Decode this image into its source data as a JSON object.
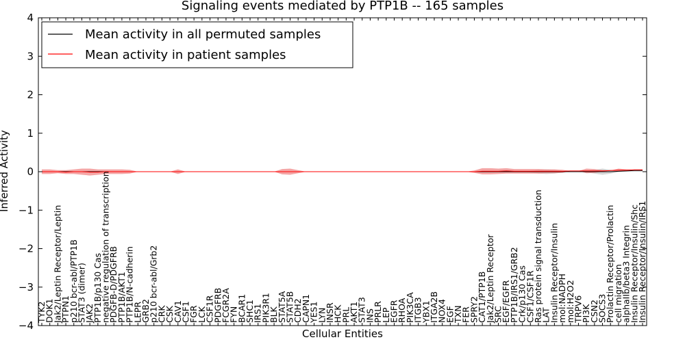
{
  "chart_data": {
    "type": "line",
    "title": "Signaling events mediated by PTP1B -- 165 samples",
    "xlabel": "Cellular Entities",
    "ylabel": "Inferred Activity",
    "ylim": [
      -4,
      4
    ],
    "yticks": [
      -4,
      -3,
      -2,
      -1,
      0,
      1,
      2,
      3,
      4
    ],
    "ytick_labels": [
      "−4",
      "−3",
      "−2",
      "−1",
      "0",
      "1",
      "2",
      "3",
      "4"
    ],
    "grid": false,
    "legend": {
      "position": "top-left",
      "entries": [
        {
          "label": "Mean activity in all permuted samples",
          "color": "#000000"
        },
        {
          "label": "Mean activity in patient samples",
          "color": "#ff0000"
        }
      ]
    },
    "categories": [
      "TYK2",
      "DOK1",
      "Jak2/Leptin Receptor/Leptin",
      "PTPN1",
      "p210 bcr-abl/PTP1B",
      "STAT3 (dimer)",
      "JAK2",
      "PTP1B/p130 Cas",
      "negative regulation of transcription",
      "PDGFB-D/PDGFRB",
      "PTP1B/AKT1",
      "PTP1B/N-cadherin",
      "LEPR",
      "GRB2",
      "p210 bcr-abl/Grb2",
      "CRK",
      "CSK",
      "CAV1",
      "CSF1",
      "FGR",
      "LCK",
      "CSF1R",
      "PDGFRB",
      "FCGR2A",
      "FYN",
      "BCAR1",
      "SHC1",
      "IRS1",
      "PIK3R1",
      "BLK",
      "STAT5A",
      "STAT5B",
      "CDH2",
      "CAPN1",
      "YES1",
      "LYN",
      "INSR",
      "HCK",
      "PRL",
      "AKT1",
      "STAT3",
      "INS",
      "PRLR",
      "LEP",
      "EGFR",
      "RHOA",
      "PIK3CA",
      "ITGB3",
      "YBX1",
      "ITGA2B",
      "NOX4",
      "EGF",
      "TXN",
      "FER",
      "SPRY2",
      "CAT1/PTP1B",
      "Jak2/Leptin Receptor",
      "SRC",
      "EGF/EGFR",
      "PTP1B/IRS1/GRB2",
      "Crk/p130 Cas",
      "CSF1/CSF1R",
      "Ras protein signal transduction",
      "LAT",
      "Insulin Receptor/Insulin",
      "mol:NADPH",
      "mol:H2O2",
      "TRPV6",
      "PI3K",
      "CSN2",
      "SOCS3",
      "Prolactin Receptor/Prolactin",
      "cell migration",
      "alphaIIb/beta3 Integrin",
      "Insulin Receptor/Insulin/Shc",
      "Insulin Receptor/Insulin/IRS1"
    ],
    "series": [
      {
        "name": "Mean activity in all permuted samples",
        "color": "#000000",
        "values": [
          0,
          0,
          0,
          0,
          0,
          0,
          0,
          0,
          0,
          0,
          0,
          0,
          0,
          0,
          0,
          0,
          0,
          0,
          0,
          0,
          0,
          0,
          0,
          0,
          0,
          0,
          0,
          0,
          0,
          0,
          0,
          0,
          0,
          0,
          0,
          0,
          0,
          0,
          0,
          0,
          0,
          0,
          0,
          0,
          0,
          0,
          0,
          0,
          0,
          0,
          0,
          0,
          0,
          0,
          0,
          0,
          0,
          0,
          0,
          0,
          0,
          0,
          0,
          0,
          0,
          0,
          0,
          0,
          0,
          0,
          0,
          0,
          0.01,
          0.02,
          0.03,
          0.03
        ],
        "band": {
          "color": "#c8c8c8",
          "half_width": [
            0,
            0,
            0,
            0,
            0,
            0,
            0,
            0,
            0,
            0,
            0,
            0,
            0,
            0,
            0,
            0,
            0,
            0,
            0,
            0,
            0,
            0,
            0,
            0,
            0,
            0,
            0,
            0,
            0,
            0,
            0,
            0,
            0,
            0,
            0,
            0,
            0,
            0,
            0,
            0,
            0,
            0,
            0,
            0,
            0,
            0,
            0,
            0,
            0,
            0,
            0,
            0,
            0,
            0,
            0,
            0,
            0,
            0,
            0,
            0,
            0,
            0.02,
            0.05,
            0.06,
            0.05,
            0.02,
            0,
            0,
            0.02,
            0.05,
            0.08,
            0.05,
            0.02,
            0.02,
            0.03,
            0.03
          ]
        }
      },
      {
        "name": "Mean activity in patient samples",
        "color": "#ff0000",
        "values": [
          0,
          0,
          0,
          -0.01,
          0,
          0,
          -0.01,
          -0.01,
          0,
          0,
          0,
          0,
          0,
          0,
          0,
          0,
          0,
          0,
          0,
          0,
          0,
          0,
          0,
          0,
          0,
          0,
          0,
          0,
          0,
          0,
          0,
          0,
          0,
          0,
          0,
          0,
          0,
          0,
          0,
          0,
          0,
          0,
          0,
          0,
          0,
          0,
          0,
          0,
          0,
          0,
          0,
          0,
          0,
          0,
          0,
          0.01,
          0.01,
          0.01,
          0.02,
          0.01,
          0.01,
          0.01,
          0.01,
          0.01,
          0.01,
          0.01,
          0.02,
          0.02,
          0.02,
          0.02,
          0.02,
          0.03,
          0.04,
          0.04,
          0.05,
          0.05
        ],
        "band": {
          "color": "#f08080",
          "half_width": [
            0.06,
            0.06,
            0.04,
            0.05,
            0.06,
            0.08,
            0.09,
            0.07,
            0.06,
            0.06,
            0.06,
            0.05,
            0,
            0,
            0,
            0,
            0,
            0.06,
            0,
            0,
            0,
            0,
            0,
            0,
            0,
            0,
            0,
            0,
            0,
            0,
            0.07,
            0.08,
            0.04,
            0,
            0,
            0,
            0,
            0,
            0,
            0,
            0,
            0,
            0,
            0,
            0,
            0,
            0,
            0,
            0,
            0,
            0,
            0,
            0,
            0,
            0.03,
            0.08,
            0.08,
            0.07,
            0.07,
            0.06,
            0.06,
            0.06,
            0.06,
            0.05,
            0.05,
            0.04,
            0,
            0,
            0.06,
            0.05,
            0.02,
            0,
            0.04,
            0.02,
            0,
            0
          ]
        }
      }
    ]
  }
}
